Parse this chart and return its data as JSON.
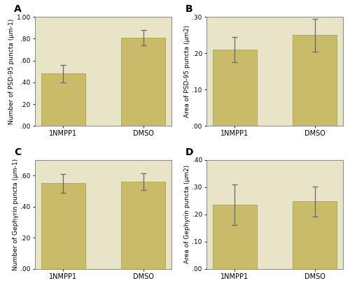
{
  "panels": [
    {
      "label": "A",
      "ylabel": "Number of PSD-95 puncta (μm-1)",
      "categories": [
        "1NMPP1",
        "DMSO"
      ],
      "values": [
        0.48,
        0.81
      ],
      "errors": [
        0.08,
        0.07
      ],
      "ylim": [
        0.0,
        1.0
      ],
      "yticks": [
        0.0,
        0.2,
        0.4,
        0.6,
        0.8,
        1.0
      ]
    },
    {
      "label": "B",
      "ylabel": "Area of PSD-95 puncta (μm2)",
      "categories": [
        "1NMPP1",
        "DMSO"
      ],
      "values": [
        0.21,
        0.25
      ],
      "errors": [
        0.035,
        0.045
      ],
      "ylim": [
        0.0,
        0.3
      ],
      "yticks": [
        0.0,
        0.1,
        0.2,
        0.3
      ]
    },
    {
      "label": "C",
      "ylabel": "Number of Gephyrin puncta (μm-1)",
      "categories": [
        "1NMPP1",
        "DMSO"
      ],
      "values": [
        0.55,
        0.56
      ],
      "errors": [
        0.06,
        0.055
      ],
      "ylim": [
        0.0,
        0.7
      ],
      "yticks": [
        0.0,
        0.2,
        0.4,
        0.6
      ]
    },
    {
      "label": "D",
      "ylabel": "Area of Gephyrin puncta (μm2)",
      "categories": [
        "1NMPP1",
        "DMSO"
      ],
      "values": [
        0.235,
        0.248
      ],
      "errors": [
        0.075,
        0.055
      ],
      "ylim": [
        0.0,
        0.4
      ],
      "yticks": [
        0.0,
        0.1,
        0.2,
        0.3,
        0.4
      ]
    }
  ],
  "bar_color": "#c8bc6a",
  "bar_edge_color": "#b0a855",
  "error_color": "#666666",
  "plot_bg_color": "#e8e4c8",
  "fig_bg_color": "#ffffff",
  "bar_width": 0.55,
  "label_fontsize": 6.5,
  "tick_fontsize": 6.5,
  "xtick_fontsize": 7,
  "panel_label_fontsize": 10
}
